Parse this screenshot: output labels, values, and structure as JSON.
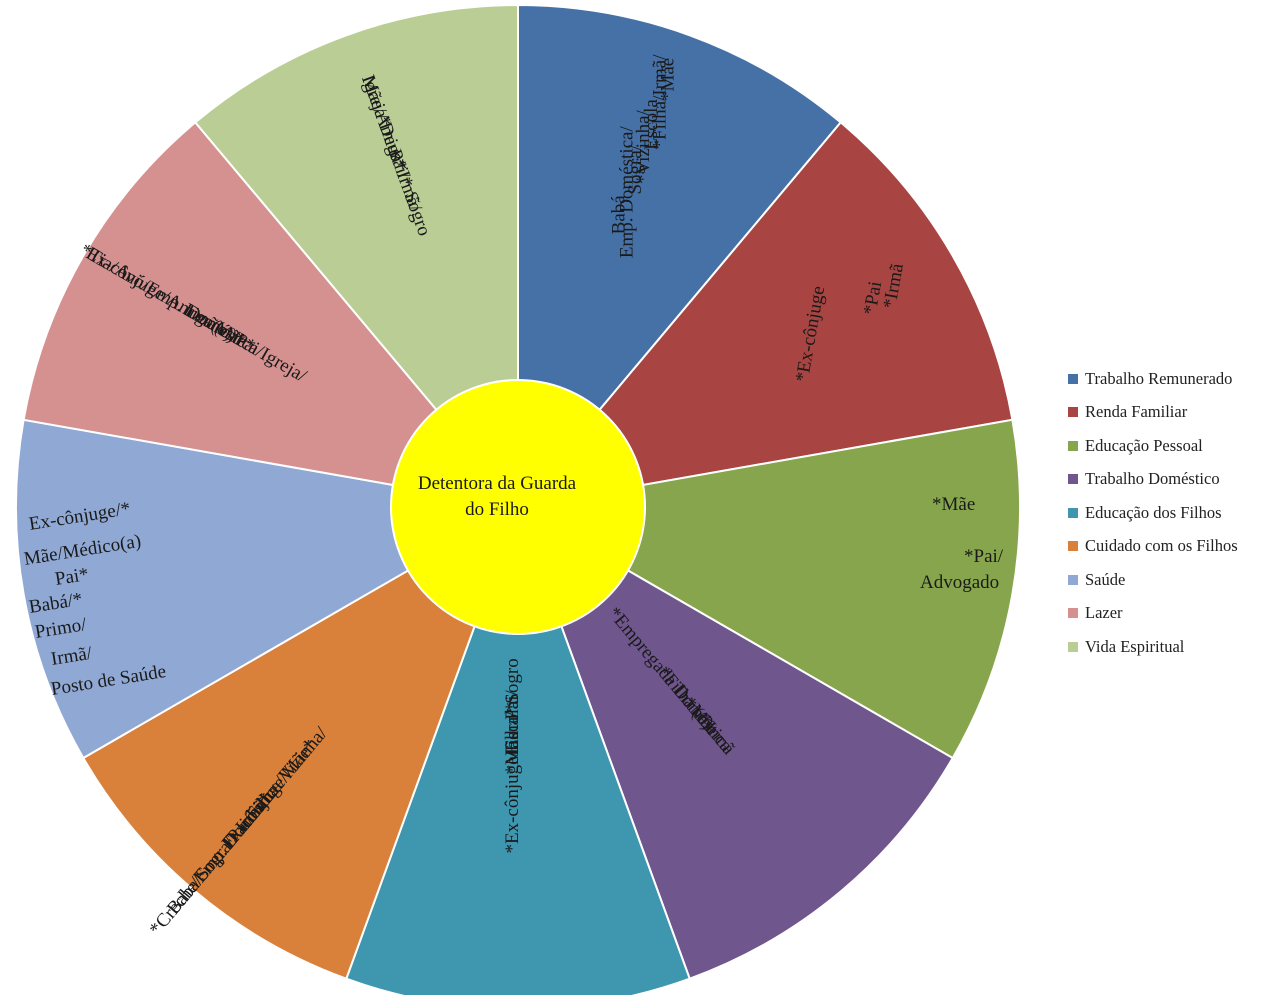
{
  "center": {
    "lines": [
      "Detentora da Guarda",
      "do Filho"
    ],
    "color": "#ffff00"
  },
  "segments": [
    {
      "name": "Trabalho Remunerado",
      "color": "#4571a7",
      "lines": [
        "*Mãe",
        "*Filha/Irmã/",
        "Escola",
        "*Vizinha/",
        "Sogra/",
        "Emp. Doméstica/",
        "Babá"
      ]
    },
    {
      "name": "Renda Familiar",
      "color": "#a84543",
      "lines": [
        "*Irmã",
        "*Pai",
        "",
        "",
        "*Ex-cônjuge"
      ]
    },
    {
      "name": "Educação Pessoal",
      "color": "#87a54c",
      "lines": [
        "*Mãe",
        "",
        "*Pai/",
        "Advogado"
      ]
    },
    {
      "name": "Trabalho Doméstico",
      "color": "#6f568c",
      "lines": [
        "*Empregada Doméstica",
        "*Filha (o)",
        "*Mãe",
        "*Irmã"
      ]
    },
    {
      "name": "Educação dos Filhos",
      "color": "#3f97af",
      "lines": [
        "*Ex-cônjuge/Escola",
        "*Mãe",
        "Filha/*",
        "Pai/",
        "Sogro"
      ]
    },
    {
      "name": "Cuidado com os Filhos",
      "color": "#d9813a",
      "lines": [
        "Ex-cônjuge/Mãe*",
        "Irmã*",
        "*Creche/Emp. Doméstica/Vizinha/",
        "Baba/Sogra/Pai/Filha"
      ]
    },
    {
      "name": "Saúde",
      "color": "#90a8d4",
      "lines": [
        "Ex-cônjuge/*",
        "Mãe/Médico(a)",
        "Pai*",
        "Babá/*",
        "Primo/",
        "Irmã/",
        "Posto de Saúde"
      ]
    },
    {
      "name": "Lazer",
      "color": "#d49190",
      "lines": [
        "Mãe*",
        "Irmã(o)*",
        "*Tia/Avó/Emp. Doméstica/Igreja/",
        "Ex-cônjuge/Amiga(o)/Pai"
      ]
    },
    {
      "name": "Vida Espiritual",
      "color": "#b9cd95",
      "lines": [
        "Igreja*",
        "Mãe/Amiga*",
        "Deus*",
        "Pai/*",
        "Irmã/",
        "Sogro"
      ]
    }
  ]
}
